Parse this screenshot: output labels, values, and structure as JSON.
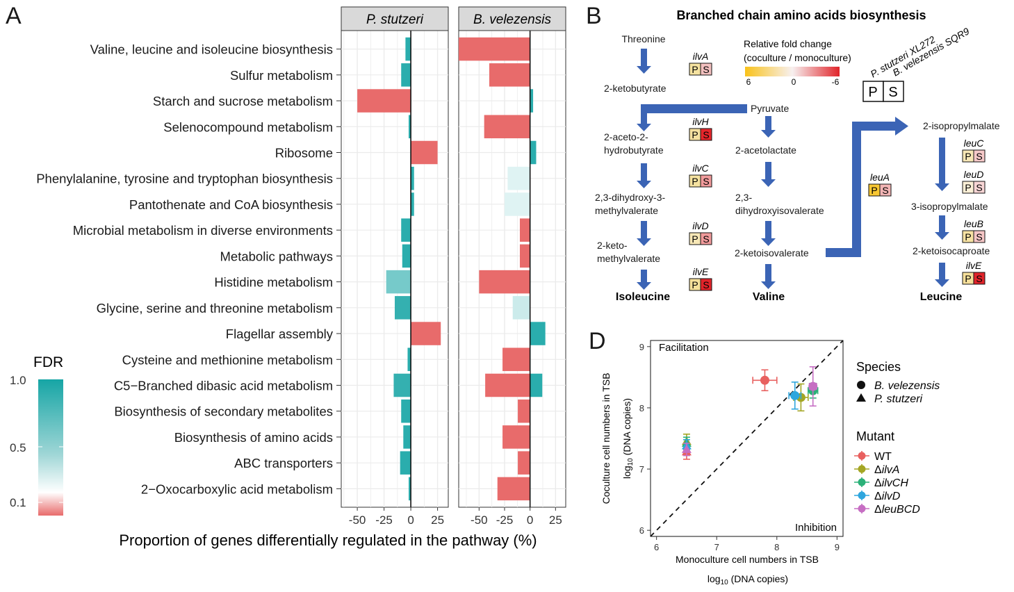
{
  "panels": {
    "A": "A",
    "B": "B",
    "D": "D"
  },
  "panelA": {
    "facets": [
      "P. stutzeri",
      "B. velezensis"
    ],
    "pathways": [
      "Valine, leucine and isoleucine biosynthesis",
      "Sulfur metabolism",
      "Starch and sucrose metabolism",
      "Selenocompound metabolism",
      "Ribosome",
      "Phenylalanine, tyrosine and tryptophan biosynthesis",
      "Pantothenate and CoA biosynthesis",
      "Microbial metabolism in diverse environments",
      "Metabolic pathways",
      "Histidine metabolism",
      "Glycine, serine and threonine metabolism",
      "Flagellar assembly",
      "Cysteine and methionine metabolism",
      "C5−Branched dibasic acid metabolism",
      "Biosynthesis of secondary metabolites",
      "Biosynthesis of amino acids",
      "ABC transporters",
      "2−Oxocarboxylic acid metabolism"
    ],
    "xticks": [
      "-50",
      "-25",
      "0",
      "25"
    ],
    "xlabel": "Proportion of genes differentially regulated in the pathway (%)",
    "legend_title": "FDR",
    "legend_ticks": [
      "1.0",
      "0.5",
      "0.1"
    ],
    "colors": {
      "low": "#e86b6b",
      "mid": "#ffffff",
      "high": "#16a5a5"
    }
  },
  "chart_data": [
    {
      "type": "bar",
      "facet": "P. stutzeri",
      "orientation": "horizontal",
      "categories_ref": "panelA.pathways",
      "values": [
        -5,
        -9,
        -50,
        -2,
        25,
        3,
        3,
        -9,
        -8,
        -23,
        -15,
        28,
        -3,
        -16,
        -9,
        -7,
        -10,
        -2
      ],
      "fdr": [
        0.9,
        0.9,
        0.1,
        0.9,
        0.1,
        0.9,
        0.9,
        0.9,
        0.9,
        0.55,
        0.85,
        0.1,
        0.9,
        0.85,
        0.9,
        0.9,
        0.9,
        0.9
      ],
      "xlim": [
        -65,
        35
      ]
    },
    {
      "type": "bar",
      "facet": "B. velezensis",
      "orientation": "horizontal",
      "categories_ref": "panelA.pathways",
      "values": [
        -70,
        -40,
        3,
        -45,
        6,
        -22,
        -25,
        -10,
        -10,
        -50,
        -17,
        15,
        -27,
        -44,
        -12,
        -27,
        -12,
        -32
      ],
      "fdr": [
        0.1,
        0.1,
        0.9,
        0.1,
        0.9,
        0.2,
        0.2,
        0.1,
        0.1,
        0.1,
        0.25,
        0.9,
        0.1,
        0.1,
        0.1,
        0.1,
        0.1,
        0.1
      ],
      "extra_positive": {
        "index": 13,
        "value": 12,
        "fdr": 0.9
      },
      "xlim": [
        -70,
        35
      ]
    },
    {
      "type": "scatter",
      "panel": "D",
      "xlabel_line1": "Monoculture cell numbers in TSB",
      "xlabel_line2": "log10 (DNA copies)",
      "ylabel_line1": "Coculture cell numbers in TSB",
      "ylabel_line2": "log10 (DNA copies)",
      "xlim": [
        5.9,
        9.1
      ],
      "ylim": [
        5.9,
        9.1
      ],
      "xticks": [
        "6",
        "7",
        "8",
        "9"
      ],
      "yticks": [
        "6",
        "7",
        "8",
        "9"
      ],
      "annotations": [
        "Facilitation",
        "Inhibition"
      ],
      "diagonal": true,
      "series": [
        {
          "name": "WT",
          "color": "#e8605f",
          "points": [
            {
              "species": "B. velezensis",
              "x": 7.8,
              "y": 8.45,
              "xerr": 0.2,
              "yerr": 0.17
            },
            {
              "species": "P. stutzeri",
              "x": 6.5,
              "y": 7.28,
              "xerr": 0.0,
              "yerr": 0.12
            }
          ]
        },
        {
          "name": "ΔilvA",
          "color": "#a4a624",
          "points": [
            {
              "species": "B. velezensis",
              "x": 8.4,
              "y": 8.17,
              "xerr": 0.12,
              "yerr": 0.22
            },
            {
              "species": "P. stutzeri",
              "x": 6.5,
              "y": 7.45,
              "xerr": 0.0,
              "yerr": 0.12
            }
          ]
        },
        {
          "name": "ΔilvCH",
          "color": "#2bb179",
          "points": [
            {
              "species": "B. velezensis",
              "x": 8.6,
              "y": 8.28,
              "xerr": 0.08,
              "yerr": 0.12
            },
            {
              "species": "P. stutzeri",
              "x": 6.5,
              "y": 7.42,
              "xerr": 0.0,
              "yerr": 0.1
            }
          ]
        },
        {
          "name": "ΔilvD",
          "color": "#2ea6de",
          "points": [
            {
              "species": "B. velezensis",
              "x": 8.3,
              "y": 8.2,
              "xerr": 0.1,
              "yerr": 0.22
            },
            {
              "species": "P. stutzeri",
              "x": 6.5,
              "y": 7.38,
              "xerr": 0.0,
              "yerr": 0.1
            }
          ]
        },
        {
          "name": "ΔleuBCD",
          "color": "#c66ec3",
          "points": [
            {
              "species": "B. velezensis",
              "x": 8.6,
              "y": 8.35,
              "xerr": 0.06,
              "yerr": 0.32
            },
            {
              "species": "P. stutzeri",
              "x": 6.5,
              "y": 7.32,
              "xerr": 0.0,
              "yerr": 0.1
            }
          ]
        }
      ],
      "legend_species_title": "Species",
      "legend_species": [
        "B. velezensis",
        "P. stutzeri"
      ],
      "legend_mutant_title": "Mutant",
      "legend_mutants": [
        "WT",
        "ΔilvA",
        "ΔilvCH",
        "ΔilvD",
        "ΔleuBCD"
      ]
    }
  ],
  "panelB": {
    "title": "Branched chain amino acids biosynthesis",
    "legend_title_line1": "Relative fold change",
    "legend_title_line2": "(coculture / monoculture)",
    "legend_ticks": [
      "6",
      "0",
      "-6"
    ],
    "species_label_1": "P. stutzeri XL272",
    "species_label_2": "B. velezensis SQR9",
    "box_P": "P",
    "box_S": "S",
    "metabolites": {
      "threonine": "Threonine",
      "ketobutyrate": "2-ketobutyrate",
      "pyruvate": "Pyruvate",
      "aceto1": "2-aceto-2-",
      "aceto2": "hydrobutyrate",
      "acetolactate": "2-acetolactate",
      "dihm1": "2,3-dihydroxy-3-",
      "dihm2": "methylvalerate",
      "dihi1": "2,3-",
      "dihi2": "dihydroxyisovalerate",
      "ketom1": "2-keto-",
      "ketom2": "methylvalerate",
      "ketoiso": "2-ketoisovalerate",
      "isoleucine": "Isoleucine",
      "valine": "Valine",
      "isopropylmalate2": "2-isopropylmalate",
      "isopropylmalate3": "3-isopropylmalate",
      "ketoisocaproate": "2-ketoisocaproate",
      "leucine": "Leucine"
    },
    "genes": [
      {
        "name": "ilvA",
        "P": "#f5e2a0",
        "S": "#f2c0bf"
      },
      {
        "name": "ilvH",
        "P": "#f5e0a0",
        "S": "#e5262b"
      },
      {
        "name": "ilvC",
        "P": "#f5e2a0",
        "S": "#f09a9b"
      },
      {
        "name": "ilvD",
        "P": "#f7e7b6",
        "S": "#f09a9b"
      },
      {
        "name": "ilvE",
        "P": "#f5df9a",
        "S": "#e0242a"
      },
      {
        "name": "leuA",
        "P": "#f8c733",
        "S": "#f2b5b5"
      },
      {
        "name": "leuC",
        "P": "#f7e7b6",
        "S": "#f5c8c8"
      },
      {
        "name": "leuD",
        "P": "#fbefd6",
        "S": "#f7d5d5"
      },
      {
        "name": "leuB",
        "P": "#f7e2a3",
        "S": "#f5c6c6"
      },
      {
        "name": "ilvE2",
        "label": "ilvE",
        "P": "#f5df9a",
        "S": "#e0242a"
      }
    ],
    "arrow_color": "#3b64b5"
  }
}
